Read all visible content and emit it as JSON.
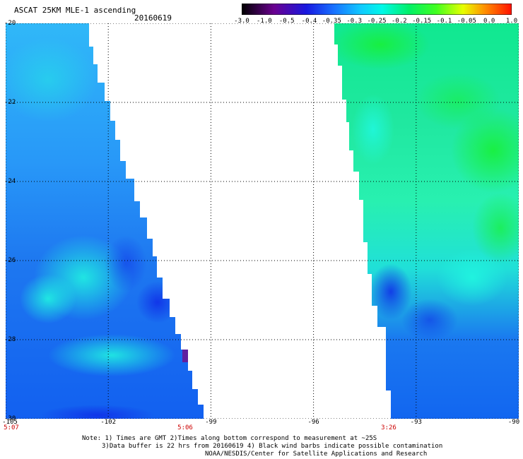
{
  "header": {
    "title": "ASCAT 25KM MLE-1 ascending",
    "date": "20160619"
  },
  "colorbar": {
    "labels": [
      "-3.0",
      "-1.0",
      "-0.5",
      "-0.4",
      "-0.35",
      "-0.3",
      "-0.25",
      "-0.2",
      "-0.15",
      "-0.1",
      "-0.05",
      "0.0",
      "1.0"
    ],
    "colors": [
      "#200020",
      "#5a0090",
      "#2020d8",
      "#0a3cff",
      "#1e6eff",
      "#19a8ff",
      "#00f0e0",
      "#00f070",
      "#30ff20",
      "#a0ff10",
      "#ffff00",
      "#ff8000",
      "#ff1000"
    ]
  },
  "map": {
    "lat_labels": [
      "-20",
      "-22",
      "-24",
      "-26",
      "-28",
      "-30"
    ],
    "lon_labels": [
      "-105",
      "-102",
      "-99",
      "-96",
      "-93",
      "-90"
    ],
    "time_labels": [
      "5:07",
      "5:06",
      "3:26"
    ]
  },
  "footer": {
    "note1": "Note: 1) Times are GMT 2)Times along bottom correspond to measurement at ~25S",
    "note2": "3)Data buffer is 22 hrs from 20160619 4) Black wind barbs indicate possible contamination",
    "credit": "NOAA/NESDIS/Center for Satellite Applications and Research"
  }
}
